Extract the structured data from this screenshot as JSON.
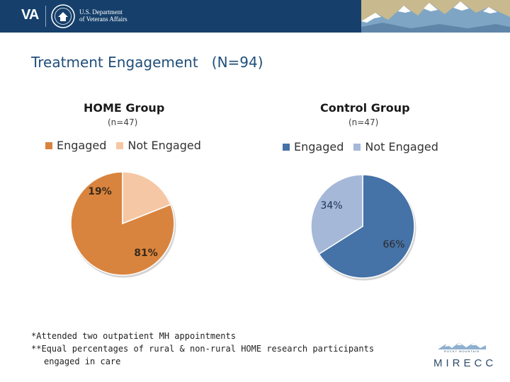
{
  "header": {
    "va_mark": "VA",
    "dept_line1": "U.S. Department",
    "dept_line2": "of Veterans Affairs"
  },
  "slide": {
    "title": "Treatment Engagement   (N=94)"
  },
  "chart_data": [
    {
      "type": "pie",
      "title": "HOME Group",
      "subtitle": "(n=47)",
      "categories": [
        "Engaged",
        "Not Engaged"
      ],
      "values": [
        81,
        19
      ],
      "labels": [
        "81%",
        "19%"
      ],
      "colors": [
        "#d9843e",
        "#f6c7a4"
      ],
      "legend_position": "top"
    },
    {
      "type": "pie",
      "title": "Control Group",
      "subtitle": "(n=47)",
      "categories": [
        "Engaged",
        "Not Engaged"
      ],
      "values": [
        66,
        34
      ],
      "labels": [
        "66%",
        "34%"
      ],
      "colors": [
        "#4572a7",
        "#a5b8d8"
      ],
      "legend_position": "top"
    }
  ],
  "footnotes": {
    "line1": "*Attended two outpatient MH appointments",
    "line2": "**Equal percentages of rural & non-rural HOME research participants",
    "line3": "engaged in care"
  },
  "logo": {
    "small_text": "ROCKY MOUNTAIN",
    "big_text": "MIRECC"
  }
}
